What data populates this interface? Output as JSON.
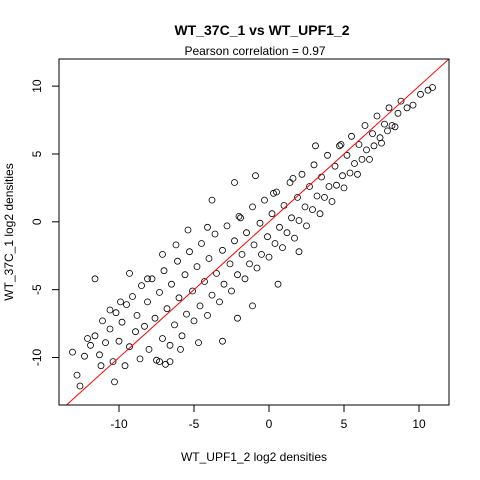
{
  "chart_data": {
    "type": "scatter",
    "title": "WT_37C_1 vs WT_UPF1_2",
    "subtitle": "Pearson correlation =  0.97",
    "xlabel": "WT_UPF1_2 log2 densities",
    "ylabel": "WT_37C_1 log2 densities",
    "xlim": [
      -14,
      12
    ],
    "ylim": [
      -13.5,
      12
    ],
    "xticks": [
      -10,
      -5,
      0,
      5,
      10
    ],
    "yticks": [
      -10,
      -5,
      0,
      5,
      10
    ],
    "x_tick_labels": [
      "-10",
      "-5",
      "0",
      "5",
      "10"
    ],
    "y_tick_labels": [
      "-10",
      "-5",
      "0",
      "5",
      "10"
    ],
    "marker": "open-circle",
    "fit_line": {
      "slope": 1,
      "intercept": 0,
      "color": "#ff0000"
    },
    "points": [
      [
        -13.1,
        -9.6
      ],
      [
        -12.8,
        -11.3
      ],
      [
        -12.6,
        -12.1
      ],
      [
        -12.1,
        -8.6
      ],
      [
        -11.9,
        -9.1
      ],
      [
        -11.6,
        -8.4
      ],
      [
        -11.3,
        -9.8
      ],
      [
        -11.1,
        -7.3
      ],
      [
        -10.9,
        -8.9
      ],
      [
        -10.6,
        -7.9
      ],
      [
        -10.4,
        -10.3
      ],
      [
        -10.2,
        -6.7
      ],
      [
        -10.0,
        -8.8
      ],
      [
        -9.8,
        -7.4
      ],
      [
        -9.6,
        -10.6
      ],
      [
        -9.5,
        -6.1
      ],
      [
        -9.3,
        -9.2
      ],
      [
        -9.1,
        -5.5
      ],
      [
        -8.9,
        -8.1
      ],
      [
        -8.8,
        -6.9
      ],
      [
        -8.6,
        -10.1
      ],
      [
        -8.5,
        -4.7
      ],
      [
        -8.3,
        -7.7
      ],
      [
        -8.1,
        -5.9
      ],
      [
        -8.0,
        -9.4
      ],
      [
        -7.8,
        -4.2
      ],
      [
        -7.6,
        -7.1
      ],
      [
        -7.5,
        -10.2
      ],
      [
        -7.3,
        -5.2
      ],
      [
        -7.1,
        -8.6
      ],
      [
        -7.0,
        -3.6
      ],
      [
        -6.8,
        -6.4
      ],
      [
        -6.6,
        -9.1
      ],
      [
        -6.5,
        -4.6
      ],
      [
        -6.3,
        -7.6
      ],
      [
        -6.1,
        -2.9
      ],
      [
        -6.0,
        -5.6
      ],
      [
        -5.8,
        -8.4
      ],
      [
        -5.6,
        -3.9
      ],
      [
        -5.5,
        -6.8
      ],
      [
        -5.3,
        -2.2
      ],
      [
        -5.1,
        -5.1
      ],
      [
        -5.0,
        -7.3
      ],
      [
        -4.8,
        -3.3
      ],
      [
        -4.6,
        -6.2
      ],
      [
        -4.5,
        -1.6
      ],
      [
        -4.3,
        -4.4
      ],
      [
        -4.1,
        -6.9
      ],
      [
        -4.0,
        -2.7
      ],
      [
        -3.8,
        -5.4
      ],
      [
        -3.6,
        -0.9
      ],
      [
        -3.5,
        -3.8
      ],
      [
        -3.3,
        -5.9
      ],
      [
        -3.1,
        -2.1
      ],
      [
        -3.0,
        -4.6
      ],
      [
        -2.8,
        -0.3
      ],
      [
        -2.6,
        -3.1
      ],
      [
        -2.5,
        -5.1
      ],
      [
        -2.3,
        -1.4
      ],
      [
        -2.1,
        -3.9
      ],
      [
        -2.0,
        0.4
      ],
      [
        -1.8,
        -2.4
      ],
      [
        -1.6,
        -4.2
      ],
      [
        -1.5,
        -0.8
      ],
      [
        -1.3,
        -3.1
      ],
      [
        -1.1,
        1.1
      ],
      [
        -1.0,
        -1.7
      ],
      [
        -0.8,
        -3.4
      ],
      [
        -0.6,
        -0.1
      ],
      [
        -0.5,
        -2.4
      ],
      [
        -0.3,
        1.6
      ],
      [
        -0.1,
        -1.1
      ],
      [
        0.0,
        -2.6
      ],
      [
        0.2,
        0.6
      ],
      [
        0.4,
        -1.6
      ],
      [
        0.5,
        2.2
      ],
      [
        0.7,
        -0.4
      ],
      [
        0.9,
        -1.9
      ],
      [
        1.0,
        1.2
      ],
      [
        1.2,
        -0.8
      ],
      [
        1.4,
        2.9
      ],
      [
        1.5,
        0.3
      ],
      [
        1.7,
        -1.2
      ],
      [
        1.9,
        1.8
      ],
      [
        2.0,
        0.1
      ],
      [
        2.2,
        3.5
      ],
      [
        2.4,
        1.1
      ],
      [
        2.5,
        -0.3
      ],
      [
        2.7,
        2.6
      ],
      [
        2.9,
        0.9
      ],
      [
        3.0,
        4.2
      ],
      [
        3.2,
        1.9
      ],
      [
        3.4,
        0.6
      ],
      [
        3.5,
        3.3
      ],
      [
        3.7,
        1.8
      ],
      [
        3.9,
        4.9
      ],
      [
        4.0,
        2.6
      ],
      [
        4.2,
        1.5
      ],
      [
        4.4,
        4.1
      ],
      [
        4.5,
        2.7
      ],
      [
        4.7,
        5.6
      ],
      [
        4.9,
        3.4
      ],
      [
        5.0,
        2.5
      ],
      [
        5.2,
        4.9
      ],
      [
        5.4,
        3.6
      ],
      [
        5.5,
        6.3
      ],
      [
        5.7,
        4.3
      ],
      [
        5.9,
        3.5
      ],
      [
        6.0,
        5.7
      ],
      [
        6.2,
        4.6
      ],
      [
        6.4,
        7.1
      ],
      [
        6.5,
        5.3
      ],
      [
        6.7,
        4.6
      ],
      [
        6.9,
        6.5
      ],
      [
        7.0,
        5.6
      ],
      [
        7.2,
        7.8
      ],
      [
        7.4,
        6.2
      ],
      [
        7.5,
        5.8
      ],
      [
        7.7,
        7.2
      ],
      [
        7.9,
        6.7
      ],
      [
        8.0,
        8.4
      ],
      [
        8.2,
        7.1
      ],
      [
        8.4,
        7.0
      ],
      [
        8.6,
        8.0
      ],
      [
        8.8,
        8.9
      ],
      [
        9.2,
        8.4
      ],
      [
        9.6,
        8.6
      ],
      [
        10.1,
        9.4
      ],
      [
        10.6,
        9.7
      ],
      [
        10.9,
        9.9
      ],
      [
        -6.6,
        -10.3
      ],
      [
        -6.9,
        -10.5
      ],
      [
        -7.3,
        -10.3
      ],
      [
        -5.9,
        -9.4
      ],
      [
        -4.7,
        -8.9
      ],
      [
        -5.4,
        -0.6
      ],
      [
        -3.8,
        1.6
      ],
      [
        -2.3,
        2.9
      ],
      [
        -0.9,
        3.4
      ],
      [
        -4.1,
        -0.4
      ],
      [
        -8.1,
        -4.2
      ],
      [
        -11.6,
        -4.2
      ],
      [
        -9.3,
        -3.8
      ],
      [
        -7.1,
        -2.4
      ],
      [
        -6.2,
        -1.7
      ],
      [
        -1.9,
        0.3
      ],
      [
        0.3,
        2.1
      ],
      [
        1.6,
        3.2
      ],
      [
        3.1,
        5.6
      ],
      [
        4.8,
        5.7
      ],
      [
        -3.1,
        -8.8
      ],
      [
        -2.1,
        -7.1
      ],
      [
        -1.1,
        -6.2
      ],
      [
        0.6,
        -4.6
      ],
      [
        2.0,
        -2.2
      ],
      [
        -9.9,
        -5.9
      ],
      [
        -10.6,
        -6.5
      ],
      [
        -12.3,
        -9.9
      ],
      [
        -11.2,
        -10.6
      ],
      [
        -10.3,
        -11.8
      ]
    ]
  }
}
